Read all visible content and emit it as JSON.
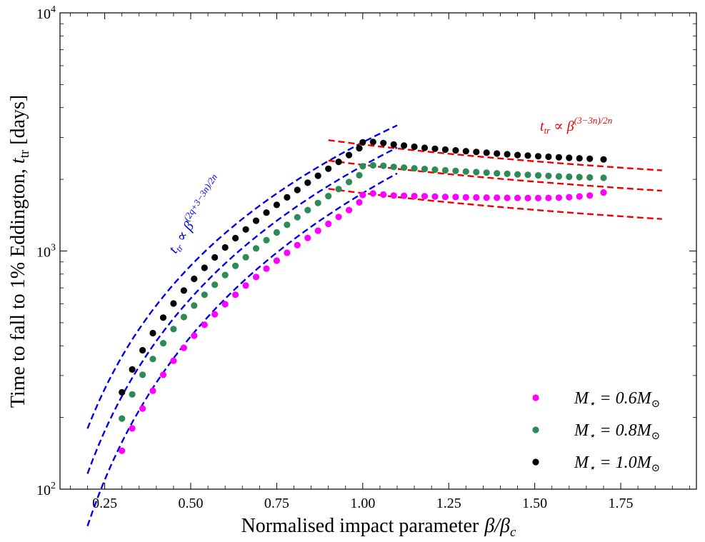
{
  "chart_data": {
    "type": "scatter",
    "title": "",
    "xlabel_text": "Normalised impact parameter",
    "xlabel_symbol": "β/β",
    "xlabel_sub": "c",
    "ylabel_text": "Time to fall to 1% Eddington,",
    "ylabel_symbol": "t",
    "ylabel_sub": "tr",
    "ylabel_unit": "[days]",
    "xlim": [
      0.12,
      1.97
    ],
    "ylim": [
      100,
      10000
    ],
    "yscale": "log",
    "x_ticks": [
      0.25,
      0.5,
      0.75,
      1.0,
      1.25,
      1.5,
      1.75
    ],
    "x_tick_labels": [
      "0.25",
      "0.50",
      "0.75",
      "1.00",
      "1.25",
      "1.50",
      "1.75"
    ],
    "y_ticks": [
      100,
      1000,
      10000
    ],
    "y_tick_labels": [
      {
        "base": "10",
        "exp": "2"
      },
      {
        "base": "10",
        "exp": "3"
      },
      {
        "base": "10",
        "exp": "4"
      }
    ],
    "series": [
      {
        "name": "M⋆ = 0.6M⊙",
        "label_lhs": "M",
        "label_star": "⋆",
        "label_value": " = 0.6M",
        "label_sun": "⊙",
        "color": "#ff00ff",
        "points": [
          [
            0.3,
            145
          ],
          [
            0.33,
            180
          ],
          [
            0.36,
            218
          ],
          [
            0.39,
            259
          ],
          [
            0.42,
            302
          ],
          [
            0.45,
            346
          ],
          [
            0.48,
            392
          ],
          [
            0.51,
            441
          ],
          [
            0.54,
            490
          ],
          [
            0.57,
            542
          ],
          [
            0.6,
            598
          ],
          [
            0.63,
            655
          ],
          [
            0.66,
            716
          ],
          [
            0.69,
            778
          ],
          [
            0.72,
            843
          ],
          [
            0.75,
            911
          ],
          [
            0.78,
            983
          ],
          [
            0.81,
            1058
          ],
          [
            0.84,
            1135
          ],
          [
            0.87,
            1217
          ],
          [
            0.9,
            1300
          ],
          [
            0.93,
            1390
          ],
          [
            0.96,
            1485
          ],
          [
            0.99,
            1600
          ],
          [
            1.0,
            1720
          ],
          [
            1.03,
            1745
          ],
          [
            1.06,
            1725
          ],
          [
            1.09,
            1710
          ],
          [
            1.12,
            1705
          ],
          [
            1.15,
            1700
          ],
          [
            1.18,
            1698
          ],
          [
            1.21,
            1692
          ],
          [
            1.24,
            1688
          ],
          [
            1.27,
            1685
          ],
          [
            1.3,
            1680
          ],
          [
            1.33,
            1678
          ],
          [
            1.36,
            1676
          ],
          [
            1.39,
            1674
          ],
          [
            1.42,
            1672
          ],
          [
            1.45,
            1670
          ],
          [
            1.48,
            1668
          ],
          [
            1.51,
            1668
          ],
          [
            1.54,
            1670
          ],
          [
            1.57,
            1675
          ],
          [
            1.6,
            1683
          ],
          [
            1.63,
            1695
          ],
          [
            1.66,
            1710
          ],
          [
            1.7,
            1760
          ]
        ]
      },
      {
        "name": "M⋆ = 0.8M⊙",
        "label_lhs": "M",
        "label_star": "⋆",
        "label_value": " = 0.8M",
        "label_sun": "⊙",
        "color": "#2e8b57",
        "points": [
          [
            0.3,
            198
          ],
          [
            0.33,
            250
          ],
          [
            0.36,
            302
          ],
          [
            0.39,
            352
          ],
          [
            0.42,
            410
          ],
          [
            0.45,
            470
          ],
          [
            0.48,
            528
          ],
          [
            0.51,
            590
          ],
          [
            0.54,
            655
          ],
          [
            0.57,
            722
          ],
          [
            0.6,
            793
          ],
          [
            0.63,
            866
          ],
          [
            0.66,
            942
          ],
          [
            0.69,
            1025
          ],
          [
            0.72,
            1110
          ],
          [
            0.75,
            1197
          ],
          [
            0.78,
            1288
          ],
          [
            0.81,
            1385
          ],
          [
            0.84,
            1485
          ],
          [
            0.87,
            1590
          ],
          [
            0.9,
            1700
          ],
          [
            0.93,
            1820
          ],
          [
            0.96,
            1948
          ],
          [
            0.99,
            2080
          ],
          [
            1.0,
            2270
          ],
          [
            1.03,
            2290
          ],
          [
            1.06,
            2280
          ],
          [
            1.09,
            2255
          ],
          [
            1.12,
            2240
          ],
          [
            1.15,
            2225
          ],
          [
            1.18,
            2210
          ],
          [
            1.21,
            2196
          ],
          [
            1.24,
            2182
          ],
          [
            1.27,
            2170
          ],
          [
            1.3,
            2157
          ],
          [
            1.33,
            2145
          ],
          [
            1.36,
            2133
          ],
          [
            1.39,
            2120
          ],
          [
            1.42,
            2110
          ],
          [
            1.45,
            2098
          ],
          [
            1.48,
            2088
          ],
          [
            1.51,
            2078
          ],
          [
            1.54,
            2068
          ],
          [
            1.57,
            2058
          ],
          [
            1.6,
            2050
          ],
          [
            1.63,
            2043
          ],
          [
            1.66,
            2037
          ],
          [
            1.7,
            2030
          ]
        ]
      },
      {
        "name": "M⋆ = 1.0M⊙",
        "label_lhs": "M",
        "label_star": "⋆",
        "label_value": " = 1.0M",
        "label_sun": "⊙",
        "color": "#000000",
        "points": [
          [
            0.3,
            255
          ],
          [
            0.33,
            318
          ],
          [
            0.36,
            383
          ],
          [
            0.39,
            452
          ],
          [
            0.42,
            525
          ],
          [
            0.45,
            602
          ],
          [
            0.48,
            682
          ],
          [
            0.51,
            764
          ],
          [
            0.54,
            850
          ],
          [
            0.57,
            940
          ],
          [
            0.6,
            1035
          ],
          [
            0.63,
            1132
          ],
          [
            0.66,
            1232
          ],
          [
            0.69,
            1340
          ],
          [
            0.72,
            1450
          ],
          [
            0.75,
            1562
          ],
          [
            0.78,
            1680
          ],
          [
            0.81,
            1805
          ],
          [
            0.84,
            1935
          ],
          [
            0.87,
            2070
          ],
          [
            0.9,
            2215
          ],
          [
            0.93,
            2368
          ],
          [
            0.96,
            2530
          ],
          [
            0.99,
            2700
          ],
          [
            1.0,
            2860
          ],
          [
            1.03,
            2870
          ],
          [
            1.06,
            2840
          ],
          [
            1.09,
            2800
          ],
          [
            1.12,
            2770
          ],
          [
            1.15,
            2740
          ],
          [
            1.18,
            2712
          ],
          [
            1.21,
            2688
          ],
          [
            1.24,
            2665
          ],
          [
            1.27,
            2645
          ],
          [
            1.3,
            2625
          ],
          [
            1.33,
            2605
          ],
          [
            1.36,
            2585
          ],
          [
            1.39,
            2566
          ],
          [
            1.42,
            2548
          ],
          [
            1.45,
            2530
          ],
          [
            1.48,
            2515
          ],
          [
            1.51,
            2500
          ],
          [
            1.54,
            2487
          ],
          [
            1.57,
            2474
          ],
          [
            1.6,
            2462
          ],
          [
            1.63,
            2451
          ],
          [
            1.66,
            2440
          ],
          [
            1.7,
            2425
          ]
        ]
      }
    ],
    "fit_lines": [
      {
        "name": "rise-0.6",
        "color": "#0000ee",
        "x_from": 0.2,
        "x_to": 1.1,
        "y_at_1": 1750,
        "slope": 2.0
      },
      {
        "name": "rise-0.8",
        "color": "#0000ee",
        "x_from": 0.2,
        "x_to": 1.1,
        "y_at_1": 2280,
        "slope": 1.85
      },
      {
        "name": "rise-1.0",
        "color": "#0000ee",
        "x_from": 0.2,
        "x_to": 1.1,
        "y_at_1": 2860,
        "slope": 1.72
      },
      {
        "name": "flat-0.6",
        "color": "#ee0000",
        "x_from": 0.9,
        "x_to": 1.87,
        "y_at_1": 1750,
        "slope": -0.4
      },
      {
        "name": "flat-0.8",
        "color": "#ee0000",
        "x_from": 0.9,
        "x_to": 1.87,
        "y_at_1": 2300,
        "slope": -0.4
      },
      {
        "name": "flat-1.0",
        "color": "#ee0000",
        "x_from": 0.9,
        "x_to": 1.87,
        "y_at_1": 2800,
        "slope": -0.4
      }
    ],
    "annotations": {
      "rise": {
        "symbol": "t",
        "sub": "tr",
        "rel": " ∝ β",
        "exp": "(2q+3−3n)/2n",
        "color": "#0000ee"
      },
      "flat": {
        "symbol": "t",
        "sub": "tr",
        "rel": " ∝ β",
        "exp": "(3−3n)/2n",
        "color": "#ee0000"
      }
    },
    "legend_position": "bottom-right"
  }
}
